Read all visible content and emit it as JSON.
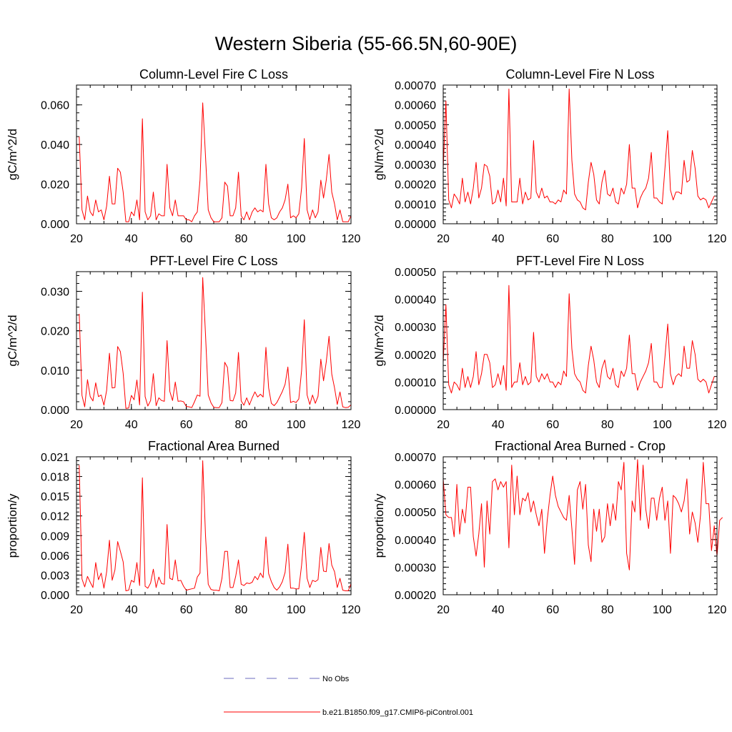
{
  "figure": {
    "title": "Western Siberia (55-66.5N,60-90E)"
  },
  "legend": {
    "items": [
      {
        "label": "No Obs",
        "color": "#6b6bbf",
        "dash": true
      },
      {
        "label": "b.e21.B1850.f09_g17.CMIP6-piControl.001",
        "color": "#ff0000",
        "dash": false
      }
    ]
  },
  "chart_data": [
    {
      "type": "line",
      "title": "Column-Level Fire C Loss",
      "ylabel": "gC/m^2/d",
      "xlim": [
        20,
        120
      ],
      "ylim": [
        0,
        0.07
      ],
      "xticks": [
        20,
        40,
        60,
        80,
        100,
        120
      ],
      "xtick_labels": [
        "20",
        "40",
        "60",
        "80",
        "100",
        "120"
      ],
      "yticks": [
        0,
        0.02,
        0.04,
        0.06
      ],
      "ytick_labels": [
        "0.000",
        "0.020",
        "0.040",
        "0.060"
      ],
      "series_color": "#ff0000",
      "x_start": 21,
      "values": [
        0.044,
        0.007,
        0.002,
        0.014,
        0.006,
        0.004,
        0.012,
        0.006,
        0.007,
        0.002,
        0.009,
        0.024,
        0.01,
        0.01,
        0.028,
        0.026,
        0.016,
        0.001,
        0.001,
        0.006,
        0.004,
        0.012,
        0.002,
        0.053,
        0.006,
        0.002,
        0.004,
        0.016,
        0.002,
        0.005,
        0.004,
        0.004,
        0.03,
        0.008,
        0.004,
        0.012,
        0.004,
        0.004,
        0.004,
        0.002,
        0.002,
        0.001,
        0.004,
        0.006,
        0.022,
        0.061,
        0.034,
        0.007,
        0.003,
        0.001,
        0.001,
        0.001,
        0.003,
        0.021,
        0.019,
        0.004,
        0.004,
        0.008,
        0.026,
        0.004,
        0.002,
        0.006,
        0.002,
        0.006,
        0.008,
        0.006,
        0.007,
        0.006,
        0.03,
        0.01,
        0.003,
        0.002,
        0.003,
        0.006,
        0.008,
        0.012,
        0.02,
        0.003,
        0.004,
        0.003,
        0.005,
        0.018,
        0.043,
        0.007,
        0.002,
        0.007,
        0.003,
        0.006,
        0.022,
        0.013,
        0.022,
        0.035,
        0.016,
        0.01,
        0.002,
        0.007,
        0.001,
        0.001,
        0.001,
        0.004
      ]
    },
    {
      "type": "line",
      "title": "Column-Level Fire N Loss",
      "ylabel": "gN/m^2/d",
      "xlim": [
        20,
        120
      ],
      "ylim": [
        0,
        0.0007
      ],
      "xticks": [
        20,
        40,
        60,
        80,
        100,
        120
      ],
      "xtick_labels": [
        "20",
        "40",
        "60",
        "80",
        "100",
        "120"
      ],
      "yticks": [
        0,
        0.0001,
        0.0002,
        0.0003,
        0.0004,
        0.0005,
        0.0006,
        0.0007
      ],
      "ytick_labels": [
        "0.00000",
        "0.00010",
        "0.00020",
        "0.00030",
        "0.00040",
        "0.00050",
        "0.00060",
        "0.00070"
      ],
      "series_color": "#ff0000",
      "x_start": 20,
      "values": [
        0.00028,
        0.00062,
        0.00012,
        8e-05,
        0.00015,
        0.00013,
        0.0001,
        0.00023,
        0.00011,
        0.00016,
        0.0001,
        0.00018,
        0.00031,
        0.00013,
        0.00018,
        0.0003,
        0.00029,
        0.00024,
        0.0001,
        0.00011,
        0.00017,
        0.00011,
        0.00023,
        9e-05,
        0.00068,
        0.00011,
        0.00011,
        0.00011,
        0.00023,
        0.0001,
        0.00016,
        0.00012,
        0.00013,
        0.00042,
        0.00016,
        0.00013,
        0.00018,
        0.00013,
        0.00014,
        0.00011,
        0.00011,
        0.0001,
        0.00012,
        0.00011,
        0.00017,
        0.00015,
        0.00068,
        0.00032,
        0.00015,
        0.00012,
        0.00011,
        8e-05,
        7e-05,
        0.00021,
        0.00031,
        0.00025,
        0.00012,
        0.0001,
        0.00021,
        0.00027,
        0.00015,
        0.00014,
        0.00018,
        0.00011,
        0.0001,
        0.00018,
        0.00015,
        0.0002,
        0.0004,
        0.00018,
        0.00018,
        8e-05,
        0.00013,
        0.00016,
        0.00018,
        0.00023,
        0.00036,
        0.00013,
        0.00013,
        0.00011,
        0.0001,
        0.00028,
        0.00047,
        0.00017,
        0.00012,
        0.00016,
        0.00016,
        0.00015,
        0.00032,
        0.00021,
        0.00022,
        0.00037,
        0.00028,
        0.00014,
        0.00012,
        0.00013,
        0.00012,
        8e-05,
        0.00011,
        0.00014
      ]
    },
    {
      "type": "line",
      "title": "PFT-Level Fire C Loss",
      "ylabel": "gC/m^2/d",
      "xlim": [
        20,
        120
      ],
      "ylim": [
        0,
        0.035
      ],
      "xticks": [
        20,
        40,
        60,
        80,
        100,
        120
      ],
      "xtick_labels": [
        "20",
        "40",
        "60",
        "80",
        "100",
        "120"
      ],
      "yticks": [
        0,
        0.01,
        0.02,
        0.03
      ],
      "ytick_labels": [
        "0.000",
        "0.010",
        "0.020",
        "0.030"
      ],
      "series_color": "#ff0000",
      "x_start": 21,
      "values": [
        0.0243,
        0.0036,
        0.0007,
        0.0076,
        0.0033,
        0.0022,
        0.0068,
        0.0033,
        0.0037,
        0.0011,
        0.0049,
        0.0143,
        0.0055,
        0.0056,
        0.016,
        0.0147,
        0.0092,
        0.0003,
        0.0004,
        0.0036,
        0.0025,
        0.0075,
        0.0012,
        0.0298,
        0.0033,
        0.0009,
        0.0023,
        0.0091,
        0.001,
        0.003,
        0.0023,
        0.0021,
        0.0175,
        0.0046,
        0.0023,
        0.007,
        0.0021,
        0.0022,
        0.002,
        0.0008,
        0.0007,
        0.0005,
        0.002,
        0.0037,
        0.0034,
        0.0335,
        0.019,
        0.0037,
        0.0017,
        0.0006,
        0.0005,
        0.0005,
        0.0018,
        0.012,
        0.0107,
        0.0023,
        0.0022,
        0.0042,
        0.0145,
        0.0022,
        0.0011,
        0.003,
        0.0012,
        0.003,
        0.0045,
        0.0032,
        0.0039,
        0.0032,
        0.0158,
        0.0055,
        0.0016,
        0.001,
        0.0018,
        0.0032,
        0.0046,
        0.0064,
        0.0108,
        0.0018,
        0.0021,
        0.0018,
        0.0027,
        0.0099,
        0.0228,
        0.0037,
        0.0013,
        0.0037,
        0.0016,
        0.0034,
        0.0128,
        0.0073,
        0.0121,
        0.0186,
        0.009,
        0.0055,
        0.0013,
        0.0045,
        0.0007,
        0.0005,
        0.0006,
        0.0012
      ]
    },
    {
      "type": "line",
      "title": "PFT-Level Fire N Loss",
      "ylabel": "gN/m^2/d",
      "xlim": [
        20,
        120
      ],
      "ylim": [
        0,
        0.0005
      ],
      "xticks": [
        20,
        40,
        60,
        80,
        100,
        120
      ],
      "xtick_labels": [
        "20",
        "40",
        "60",
        "80",
        "100",
        "120"
      ],
      "yticks": [
        0,
        0.0001,
        0.0002,
        0.0003,
        0.0004,
        0.0005
      ],
      "ytick_labels": [
        "0.00000",
        "0.00010",
        "0.00020",
        "0.00030",
        "0.00040",
        "0.00050"
      ],
      "series_color": "#ff0000",
      "x_start": 20,
      "values": [
        0.00017,
        0.00038,
        9e-05,
        6e-05,
        0.0001,
        9e-05,
        7e-05,
        0.00015,
        8e-05,
        0.00012,
        8e-05,
        0.00012,
        0.00021,
        9e-05,
        0.00013,
        0.0002,
        0.0002,
        0.00017,
        8e-05,
        9e-05,
        0.00013,
        9e-05,
        0.00016,
        7e-05,
        0.00045,
        8e-05,
        0.0001,
        0.0001,
        0.00017,
        9e-05,
        0.00012,
        9e-05,
        0.0001,
        0.00028,
        0.00012,
        0.0001,
        0.00013,
        0.00011,
        0.00013,
        0.0001,
        0.0001,
        8e-05,
        0.0001,
        9e-05,
        0.00014,
        0.00012,
        0.00042,
        0.00022,
        0.00013,
        0.00011,
        0.0001,
        7e-05,
        6e-05,
        0.00016,
        0.00023,
        0.00018,
        0.0001,
        8e-05,
        0.00015,
        0.00018,
        0.00012,
        0.00011,
        0.00015,
        9e-05,
        8e-05,
        0.00014,
        0.00012,
        0.00015,
        0.00027,
        0.00013,
        0.00013,
        7e-05,
        0.0001,
        0.00012,
        0.00014,
        0.00017,
        0.00024,
        0.0001,
        0.0001,
        8e-05,
        8e-05,
        0.00019,
        0.00031,
        0.00013,
        9e-05,
        0.00012,
        0.00013,
        0.00012,
        0.00023,
        0.00015,
        0.00015,
        0.00025,
        0.0002,
        0.00011,
        0.0001,
        0.00011,
        0.0001,
        6e-05,
        9e-05,
        0.00012
      ]
    },
    {
      "type": "line",
      "title": "Fractional Area Burned",
      "ylabel": "proportion/y",
      "xlim": [
        20,
        120
      ],
      "ylim": [
        0,
        0.021
      ],
      "xticks": [
        20,
        40,
        60,
        80,
        100,
        120
      ],
      "xtick_labels": [
        "20",
        "40",
        "60",
        "80",
        "100",
        "120"
      ],
      "yticks": [
        0,
        0.003,
        0.006,
        0.009,
        0.012,
        0.015,
        0.018,
        0.021
      ],
      "ytick_labels": [
        "0.000",
        "0.003",
        "0.006",
        "0.009",
        "0.012",
        "0.015",
        "0.018",
        "0.021"
      ],
      "series_color": "#ff0000",
      "x_start": 21,
      "values": [
        0.0197,
        0.0024,
        0.0012,
        0.0028,
        0.0019,
        0.0011,
        0.0049,
        0.0023,
        0.0033,
        0.001,
        0.0035,
        0.0083,
        0.0022,
        0.0038,
        0.0081,
        0.0066,
        0.005,
        0.0006,
        0.0007,
        0.0022,
        0.0019,
        0.0049,
        0.0014,
        0.0178,
        0.0013,
        0.001,
        0.0018,
        0.0039,
        0.0011,
        0.0027,
        0.0017,
        0.0016,
        0.0107,
        0.0025,
        0.0023,
        0.0053,
        0.0021,
        0.0022,
        0.0013,
        0.0007,
        0.0008,
        0.0009,
        0.001,
        0.0027,
        0.0033,
        0.0204,
        0.009,
        0.0016,
        0.0008,
        0.0007,
        0.0007,
        0.0006,
        0.0025,
        0.0066,
        0.0066,
        0.0011,
        0.0011,
        0.0028,
        0.0053,
        0.0016,
        0.0014,
        0.0018,
        0.0017,
        0.0019,
        0.0028,
        0.0023,
        0.0033,
        0.0026,
        0.0088,
        0.0032,
        0.002,
        0.0011,
        0.0007,
        0.0012,
        0.002,
        0.0034,
        0.0077,
        0.001,
        0.001,
        0.0009,
        0.0009,
        0.0045,
        0.0095,
        0.0025,
        0.0011,
        0.0022,
        0.002,
        0.0023,
        0.0072,
        0.0036,
        0.0035,
        0.0078,
        0.0045,
        0.0035,
        0.0011,
        0.0025,
        0.0007,
        0.0006,
        0.0006,
        0.0017
      ]
    },
    {
      "type": "line",
      "title": "Fractional Area Burned - Crop",
      "ylabel": "proportion/y",
      "xlim": [
        20,
        120
      ],
      "ylim": [
        0.0002,
        0.0007
      ],
      "xticks": [
        20,
        40,
        60,
        80,
        100,
        120
      ],
      "xtick_labels": [
        "20",
        "40",
        "60",
        "80",
        "100",
        "120"
      ],
      "yticks": [
        0.0002,
        0.0003,
        0.0004,
        0.0005,
        0.0006,
        0.0007
      ],
      "ytick_labels": [
        "0.00020",
        "0.00030",
        "0.00040",
        "0.00050",
        "0.00060",
        "0.00070"
      ],
      "series_color": "#ff0000",
      "x_start": 20,
      "values": [
        0.00062,
        0.00049,
        0.00048,
        0.00048,
        0.00041,
        0.0006,
        0.00042,
        0.00051,
        0.00046,
        0.00059,
        0.00059,
        0.00041,
        0.00034,
        0.00042,
        0.00053,
        0.0003,
        0.00054,
        0.00042,
        0.00061,
        0.00062,
        0.00058,
        0.00061,
        0.00059,
        0.00061,
        0.00037,
        0.00067,
        0.00049,
        0.00063,
        0.00049,
        0.00055,
        0.00054,
        0.00057,
        0.0005,
        0.00054,
        0.00049,
        0.00045,
        0.00051,
        0.00035,
        0.00047,
        0.00056,
        0.00063,
        0.00056,
        0.00052,
        0.0005,
        0.00048,
        0.00047,
        0.00056,
        0.00044,
        0.00031,
        0.00058,
        0.00061,
        0.00051,
        0.0006,
        0.00038,
        0.00032,
        0.00051,
        0.00043,
        0.00051,
        0.00039,
        0.00041,
        0.00053,
        0.00045,
        0.00053,
        0.00047,
        0.00061,
        0.00058,
        0.00068,
        0.00035,
        0.00029,
        0.00054,
        0.0005,
        0.00069,
        0.00047,
        0.00067,
        0.00051,
        0.00044,
        0.00055,
        0.00055,
        0.00047,
        0.00055,
        0.00059,
        0.00047,
        0.00054,
        0.00035,
        0.00056,
        0.00055,
        0.00053,
        0.0005,
        0.00054,
        0.00062,
        0.00042,
        0.0005,
        0.00046,
        0.00039,
        0.00049,
        0.00068,
        0.00053,
        0.00053,
        0.00036,
        0.00045,
        0.00034,
        0.00047,
        0.00048
      ]
    }
  ]
}
